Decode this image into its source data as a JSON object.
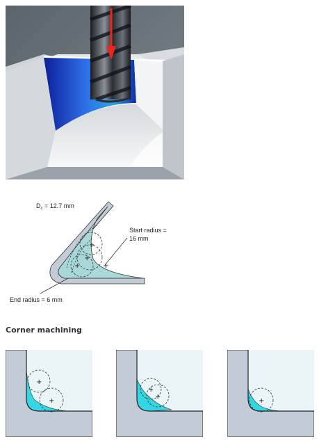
{
  "photo": {
    "icons": [
      "end-mill-tool",
      "downward-arrow"
    ],
    "colors": {
      "arrow": "#e8281f",
      "pocket_blue": "#1f3fbf"
    }
  },
  "radius_diagram": {
    "dc_symbol": "D",
    "dc_subscript": "c",
    "dc_value": " = 12.7 mm",
    "start_radius_line1": "Start radius =",
    "start_radius_line2": "16 mm",
    "end_radius": "End radius = 6 mm"
  },
  "section": {
    "title": "Corner machining"
  },
  "corner_steps": [
    {
      "icon": "corner-stage-1"
    },
    {
      "icon": "corner-stage-2"
    },
    {
      "icon": "corner-stage-3"
    }
  ],
  "colors": {
    "material": "#c3ccd6",
    "workpiece_face": "#e9f5f7",
    "stock_cyan": "#33d6e3",
    "diagram_fill": "#a8d8d8"
  }
}
